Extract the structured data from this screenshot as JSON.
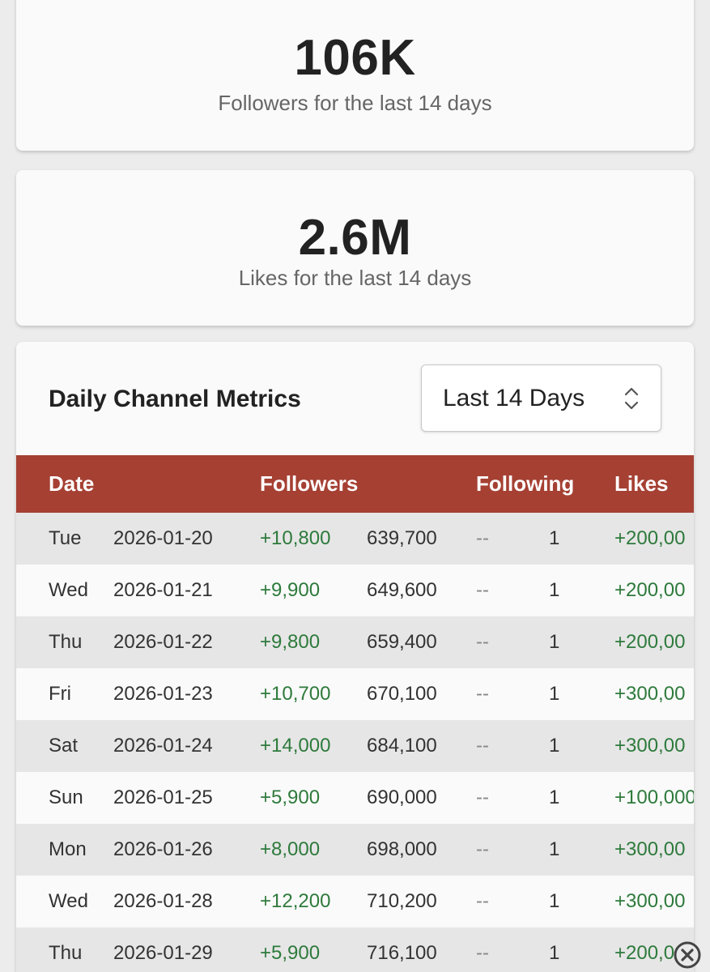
{
  "followers_card": {
    "value": "106K",
    "label": "Followers for the last 14 days"
  },
  "likes_card": {
    "value": "2.6M",
    "label": "Likes for the last 14 days"
  },
  "metrics": {
    "title": "Daily Channel Metrics",
    "range_select": {
      "value": "Last 14 Days",
      "icon": "chevron-updown-icon"
    },
    "columns": [
      "Date",
      "Followers",
      "Following",
      "Likes"
    ],
    "rows": [
      {
        "day": "Tue",
        "date": "2026-01-20",
        "followers_delta": "+10,800",
        "followers_total": "639,700",
        "following_delta": "--",
        "following_total": "1",
        "likes_delta": "+200,00"
      },
      {
        "day": "Wed",
        "date": "2026-01-21",
        "followers_delta": "+9,900",
        "followers_total": "649,600",
        "following_delta": "--",
        "following_total": "1",
        "likes_delta": "+200,00"
      },
      {
        "day": "Thu",
        "date": "2026-01-22",
        "followers_delta": "+9,800",
        "followers_total": "659,400",
        "following_delta": "--",
        "following_total": "1",
        "likes_delta": "+200,00"
      },
      {
        "day": "Fri",
        "date": "2026-01-23",
        "followers_delta": "+10,700",
        "followers_total": "670,100",
        "following_delta": "--",
        "following_total": "1",
        "likes_delta": "+300,00"
      },
      {
        "day": "Sat",
        "date": "2026-01-24",
        "followers_delta": "+14,000",
        "followers_total": "684,100",
        "following_delta": "--",
        "following_total": "1",
        "likes_delta": "+300,00"
      },
      {
        "day": "Sun",
        "date": "2026-01-25",
        "followers_delta": "+5,900",
        "followers_total": "690,000",
        "following_delta": "--",
        "following_total": "1",
        "likes_delta": "+100,000"
      },
      {
        "day": "Mon",
        "date": "2026-01-26",
        "followers_delta": "+8,000",
        "followers_total": "698,000",
        "following_delta": "--",
        "following_total": "1",
        "likes_delta": "+300,00"
      },
      {
        "day": "Wed",
        "date": "2026-01-28",
        "followers_delta": "+12,200",
        "followers_total": "710,200",
        "following_delta": "--",
        "following_total": "1",
        "likes_delta": "+300,00"
      },
      {
        "day": "Thu",
        "date": "2026-01-29",
        "followers_delta": "+5,900",
        "followers_total": "716,100",
        "following_delta": "--",
        "following_total": "1",
        "likes_delta": "+200,0"
      }
    ]
  },
  "overlay": {
    "close_icon": "close-circle-icon"
  },
  "colors": {
    "header_bg": "#a54033",
    "positive": "#2e7a3c"
  }
}
